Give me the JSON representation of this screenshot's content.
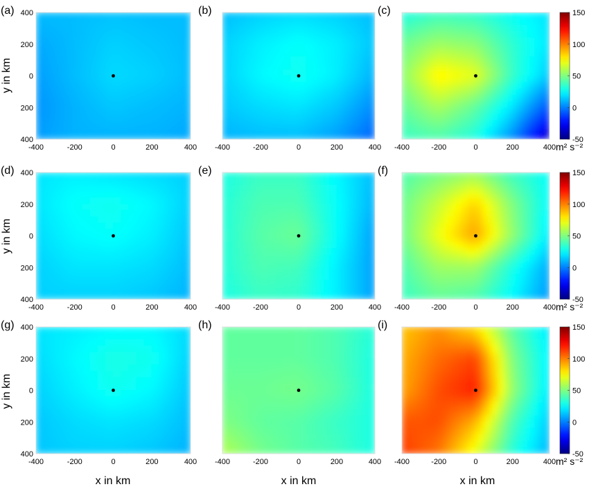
{
  "figure": {
    "y_label": "y in km",
    "x_label": "x in km",
    "colorbar": {
      "ticks": [
        "150",
        "100",
        "50",
        "0",
        "-50"
      ],
      "range": [
        -50,
        150
      ],
      "unit": "m² s⁻²",
      "colormap": "jet"
    }
  },
  "chart_data": [
    {
      "type": "heatmap",
      "panel": "(a)",
      "x_ticks": [
        "-400",
        "-200",
        "0",
        "200",
        "400"
      ],
      "y_ticks": [
        "400",
        "200",
        "0",
        "200",
        "400"
      ],
      "xlim": [
        -400,
        400
      ],
      "ylim": [
        -400,
        400
      ],
      "center_marker": [
        0,
        0
      ],
      "grid_x": [
        -400,
        -200,
        0,
        200,
        400
      ],
      "grid_y": [
        400,
        200,
        0,
        -200,
        -400
      ],
      "z": [
        [
          12,
          12,
          13,
          12,
          12
        ],
        [
          8,
          12,
          16,
          14,
          12
        ],
        [
          6,
          12,
          18,
          16,
          12
        ],
        [
          4,
          10,
          14,
          12,
          10
        ],
        [
          6,
          10,
          10,
          10,
          8
        ]
      ]
    },
    {
      "type": "heatmap",
      "panel": "(b)",
      "x_ticks": [
        "-400",
        "-200",
        "0",
        "200",
        "400"
      ],
      "y_ticks": [
        "400",
        "200",
        "0",
        "200",
        "400"
      ],
      "xlim": [
        -400,
        400
      ],
      "ylim": [
        -400,
        400
      ],
      "center_marker": [
        0,
        0
      ],
      "grid_x": [
        -400,
        -200,
        0,
        200,
        400
      ],
      "grid_y": [
        400,
        200,
        0,
        -200,
        -400
      ],
      "z": [
        [
          12,
          16,
          18,
          16,
          12
        ],
        [
          16,
          22,
          26,
          22,
          14
        ],
        [
          16,
          24,
          28,
          22,
          10
        ],
        [
          14,
          18,
          20,
          14,
          2
        ],
        [
          10,
          12,
          12,
          6,
          -6
        ]
      ]
    },
    {
      "type": "heatmap",
      "panel": "(c)",
      "x_ticks": [
        "-400",
        "-200",
        "0",
        "200",
        "400"
      ],
      "y_ticks": [
        "400",
        "200",
        "0",
        "200",
        "400"
      ],
      "xlim": [
        -400,
        400
      ],
      "ylim": [
        -400,
        400
      ],
      "center_marker": [
        0,
        0
      ],
      "grid_x": [
        -400,
        -200,
        0,
        200,
        400
      ],
      "grid_y": [
        400,
        200,
        0,
        -200,
        -400
      ],
      "z": [
        [
          30,
          36,
          34,
          26,
          20
        ],
        [
          46,
          56,
          52,
          34,
          20
        ],
        [
          52,
          78,
          70,
          36,
          14
        ],
        [
          44,
          58,
          44,
          20,
          -10
        ],
        [
          36,
          40,
          30,
          2,
          -40
        ]
      ]
    },
    {
      "type": "heatmap",
      "panel": "(d)",
      "x_ticks": [
        "-400",
        "-200",
        "0",
        "200",
        "400"
      ],
      "y_ticks": [
        "400",
        "200",
        "0",
        "200",
        "400"
      ],
      "xlim": [
        -400,
        400
      ],
      "ylim": [
        -400,
        400
      ],
      "center_marker": [
        0,
        0
      ],
      "grid_x": [
        -400,
        -200,
        0,
        200,
        400
      ],
      "grid_y": [
        400,
        200,
        0,
        -200,
        -400
      ],
      "z": [
        [
          20,
          22,
          20,
          18,
          16
        ],
        [
          20,
          26,
          28,
          24,
          16
        ],
        [
          18,
          24,
          26,
          22,
          14
        ],
        [
          16,
          20,
          20,
          18,
          12
        ],
        [
          16,
          16,
          16,
          14,
          10
        ]
      ]
    },
    {
      "type": "heatmap",
      "panel": "(e)",
      "x_ticks": [
        "-400",
        "-200",
        "0",
        "200",
        "400"
      ],
      "y_ticks": [
        "400",
        "200",
        "0",
        "200",
        "400"
      ],
      "xlim": [
        -400,
        400
      ],
      "ylim": [
        -400,
        400
      ],
      "center_marker": [
        0,
        0
      ],
      "grid_x": [
        -400,
        -200,
        0,
        200,
        400
      ],
      "grid_y": [
        400,
        200,
        0,
        -200,
        -400
      ],
      "z": [
        [
          30,
          36,
          36,
          24,
          12
        ],
        [
          32,
          40,
          40,
          26,
          10
        ],
        [
          32,
          42,
          46,
          26,
          6
        ],
        [
          32,
          40,
          38,
          22,
          6
        ],
        [
          30,
          36,
          34,
          22,
          6
        ]
      ]
    },
    {
      "type": "heatmap",
      "panel": "(f)",
      "x_ticks": [
        "-400",
        "-200",
        "0",
        "200",
        "400"
      ],
      "y_ticks": [
        "400",
        "200",
        "0",
        "200",
        "400"
      ],
      "xlim": [
        -400,
        400
      ],
      "ylim": [
        -400,
        400
      ],
      "center_marker": [
        0,
        0
      ],
      "grid_x": [
        -400,
        -200,
        0,
        200,
        400
      ],
      "grid_y": [
        400,
        200,
        0,
        -200,
        -400
      ],
      "z": [
        [
          40,
          48,
          54,
          36,
          26
        ],
        [
          46,
          64,
          84,
          50,
          24
        ],
        [
          46,
          72,
          94,
          54,
          20
        ],
        [
          40,
          56,
          56,
          30,
          8
        ],
        [
          36,
          44,
          40,
          24,
          4
        ]
      ]
    },
    {
      "type": "heatmap",
      "panel": "(g)",
      "x_ticks": [
        "-400",
        "-200",
        "0",
        "200",
        "400"
      ],
      "y_ticks": [
        "400",
        "200",
        "0",
        "200",
        "400"
      ],
      "xlim": [
        -400,
        400
      ],
      "ylim": [
        -400,
        400
      ],
      "center_marker": [
        0,
        0
      ],
      "grid_x": [
        -400,
        -200,
        0,
        200,
        400
      ],
      "grid_y": [
        400,
        200,
        0,
        -200,
        -400
      ],
      "z": [
        [
          20,
          22,
          24,
          24,
          18
        ],
        [
          18,
          24,
          30,
          28,
          16
        ],
        [
          16,
          22,
          28,
          24,
          14
        ],
        [
          14,
          18,
          20,
          18,
          12
        ],
        [
          14,
          16,
          16,
          14,
          10
        ]
      ]
    },
    {
      "type": "heatmap",
      "panel": "(h)",
      "x_ticks": [
        "-400",
        "-200",
        "0",
        "200",
        "400"
      ],
      "y_ticks": [
        "400",
        "200",
        "0",
        "200",
        "400"
      ],
      "xlim": [
        -400,
        400
      ],
      "ylim": [
        -400,
        400
      ],
      "center_marker": [
        0,
        0
      ],
      "grid_x": [
        -400,
        -200,
        0,
        200,
        400
      ],
      "grid_y": [
        400,
        200,
        0,
        -200,
        -400
      ],
      "z": [
        [
          44,
          44,
          44,
          40,
          32
        ],
        [
          44,
          44,
          44,
          40,
          30
        ],
        [
          46,
          46,
          48,
          42,
          30
        ],
        [
          50,
          44,
          42,
          36,
          30
        ],
        [
          60,
          48,
          42,
          38,
          30
        ]
      ]
    },
    {
      "type": "heatmap",
      "panel": "(i)",
      "x_ticks": [
        "-400",
        "-200",
        "0",
        "200",
        "400"
      ],
      "y_ticks": [
        "400",
        "200",
        "0",
        "200",
        "400"
      ],
      "xlim": [
        -400,
        400
      ],
      "ylim": [
        -400,
        400
      ],
      "center_marker": [
        0,
        0
      ],
      "grid_x": [
        -400,
        -200,
        0,
        200,
        400
      ],
      "grid_y": [
        400,
        200,
        0,
        -200,
        -400
      ],
      "z": [
        [
          86,
          96,
          80,
          42,
          20
        ],
        [
          90,
          104,
          112,
          50,
          22
        ],
        [
          92,
          110,
          120,
          54,
          20
        ],
        [
          108,
          110,
          90,
          40,
          14
        ],
        [
          114,
          102,
          70,
          32,
          10
        ]
      ]
    }
  ]
}
